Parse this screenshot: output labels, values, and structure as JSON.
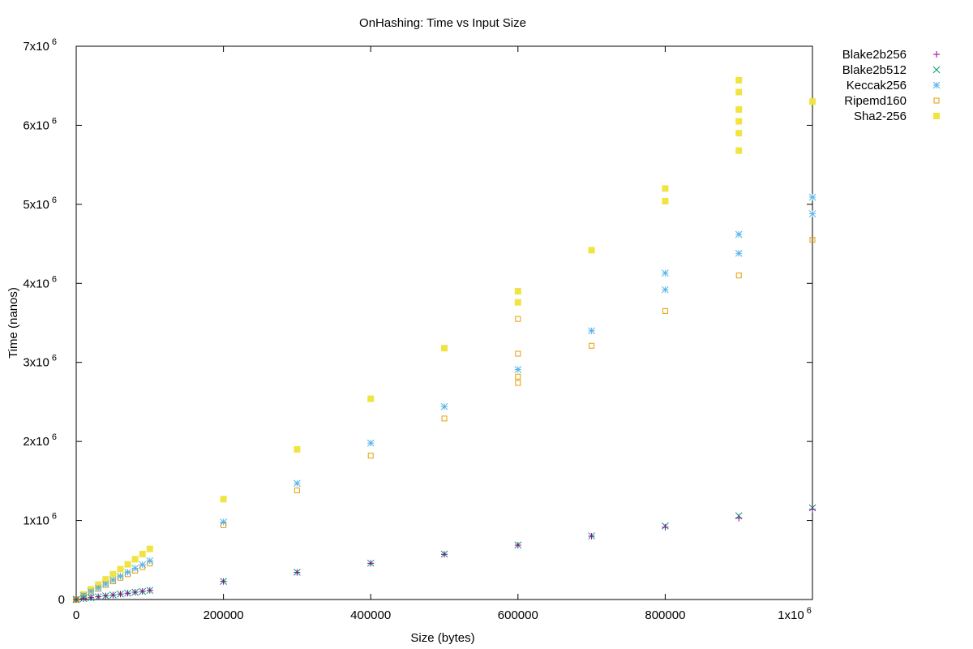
{
  "chart_data": {
    "type": "scatter",
    "title": "OnHashing: Time vs Input Size",
    "xlabel": "Size (bytes)",
    "ylabel": "Time (nanos)",
    "xlim": [
      0,
      1000000
    ],
    "ylim": [
      0,
      7000000
    ],
    "grid": false,
    "legend_position": "outside-right",
    "x_ticks": [
      {
        "value": 0,
        "label": "0"
      },
      {
        "value": 200000,
        "label": "200000"
      },
      {
        "value": 400000,
        "label": "400000"
      },
      {
        "value": 600000,
        "label": "600000"
      },
      {
        "value": 800000,
        "label": "800000"
      },
      {
        "value": 1000000,
        "label": "1x10",
        "sup": "6"
      }
    ],
    "y_ticks": [
      {
        "value": 0,
        "label": "0"
      },
      {
        "value": 1000000,
        "label": "1x10",
        "sup": "6"
      },
      {
        "value": 2000000,
        "label": "2x10",
        "sup": "6"
      },
      {
        "value": 3000000,
        "label": "3x10",
        "sup": "6"
      },
      {
        "value": 4000000,
        "label": "4x10",
        "sup": "6"
      },
      {
        "value": 5000000,
        "label": "5x10",
        "sup": "6"
      },
      {
        "value": 6000000,
        "label": "6x10",
        "sup": "6"
      },
      {
        "value": 7000000,
        "label": "7x10",
        "sup": "6"
      }
    ],
    "series": [
      {
        "name": "Blake2b256",
        "marker": "plus",
        "color": "#940094",
        "points": [
          [
            0,
            0
          ],
          [
            10000,
            12000
          ],
          [
            20000,
            23000
          ],
          [
            30000,
            34000
          ],
          [
            40000,
            46000
          ],
          [
            50000,
            57000
          ],
          [
            60000,
            69000
          ],
          [
            70000,
            80000
          ],
          [
            80000,
            92000
          ],
          [
            90000,
            103000
          ],
          [
            100000,
            115000
          ],
          [
            200000,
            228000
          ],
          [
            300000,
            343000
          ],
          [
            400000,
            458000
          ],
          [
            500000,
            572000
          ],
          [
            600000,
            688000
          ],
          [
            700000,
            800000
          ],
          [
            800000,
            915000
          ],
          [
            900000,
            1030000
          ],
          [
            1000000,
            1140000
          ]
        ]
      },
      {
        "name": "Blake2b512",
        "marker": "x",
        "color": "#009e73",
        "points": [
          [
            0,
            0
          ],
          [
            10000,
            12000
          ],
          [
            20000,
            23000
          ],
          [
            30000,
            34000
          ],
          [
            40000,
            46000
          ],
          [
            50000,
            57000
          ],
          [
            60000,
            69000
          ],
          [
            70000,
            80000
          ],
          [
            80000,
            92000
          ],
          [
            90000,
            103000
          ],
          [
            100000,
            116000
          ],
          [
            200000,
            230000
          ],
          [
            300000,
            345000
          ],
          [
            400000,
            460000
          ],
          [
            500000,
            575000
          ],
          [
            600000,
            690000
          ],
          [
            700000,
            805000
          ],
          [
            800000,
            930000
          ],
          [
            900000,
            1060000
          ],
          [
            1000000,
            1160000
          ]
        ]
      },
      {
        "name": "Keccak256",
        "marker": "star",
        "color": "#56b4e9",
        "points": [
          [
            0,
            0
          ],
          [
            10000,
            50000
          ],
          [
            20000,
            100000
          ],
          [
            30000,
            145000
          ],
          [
            40000,
            195000
          ],
          [
            50000,
            245000
          ],
          [
            60000,
            295000
          ],
          [
            70000,
            345000
          ],
          [
            80000,
            395000
          ],
          [
            90000,
            440000
          ],
          [
            100000,
            490000
          ],
          [
            200000,
            980000
          ],
          [
            300000,
            1470000
          ],
          [
            400000,
            1980000
          ],
          [
            500000,
            2440000
          ],
          [
            600000,
            2910000
          ],
          [
            700000,
            3400000
          ],
          [
            800000,
            3920000
          ],
          [
            800000,
            4130000
          ],
          [
            900000,
            4380000
          ],
          [
            900000,
            4620000
          ],
          [
            1000000,
            4880000
          ],
          [
            1000000,
            5090000
          ]
        ]
      },
      {
        "name": "Ripemd160",
        "marker": "open-square",
        "color": "#e69f00",
        "points": [
          [
            0,
            0
          ],
          [
            10000,
            45000
          ],
          [
            20000,
            90000
          ],
          [
            30000,
            135000
          ],
          [
            40000,
            185000
          ],
          [
            50000,
            230000
          ],
          [
            60000,
            275000
          ],
          [
            70000,
            320000
          ],
          [
            80000,
            365000
          ],
          [
            90000,
            410000
          ],
          [
            100000,
            455000
          ],
          [
            200000,
            940000
          ],
          [
            300000,
            1380000
          ],
          [
            400000,
            1820000
          ],
          [
            500000,
            2290000
          ],
          [
            600000,
            2740000
          ],
          [
            600000,
            2820000
          ],
          [
            600000,
            3110000
          ],
          [
            600000,
            3550000
          ],
          [
            700000,
            3210000
          ],
          [
            800000,
            3650000
          ],
          [
            900000,
            4100000
          ],
          [
            1000000,
            4550000
          ]
        ]
      },
      {
        "name": "Sha2-256",
        "marker": "filled-square",
        "color": "#f0e442",
        "points": [
          [
            0,
            0
          ],
          [
            10000,
            65000
          ],
          [
            20000,
            130000
          ],
          [
            30000,
            190000
          ],
          [
            40000,
            255000
          ],
          [
            50000,
            320000
          ],
          [
            60000,
            385000
          ],
          [
            70000,
            445000
          ],
          [
            80000,
            510000
          ],
          [
            90000,
            575000
          ],
          [
            100000,
            640000
          ],
          [
            200000,
            1270000
          ],
          [
            300000,
            1900000
          ],
          [
            400000,
            2540000
          ],
          [
            500000,
            3180000
          ],
          [
            600000,
            3760000
          ],
          [
            600000,
            3900000
          ],
          [
            700000,
            4420000
          ],
          [
            800000,
            5040000
          ],
          [
            800000,
            5200000
          ],
          [
            900000,
            5680000
          ],
          [
            900000,
            5900000
          ],
          [
            900000,
            6050000
          ],
          [
            900000,
            6200000
          ],
          [
            900000,
            6420000
          ],
          [
            900000,
            6570000
          ],
          [
            1000000,
            6300000
          ]
        ]
      }
    ]
  }
}
